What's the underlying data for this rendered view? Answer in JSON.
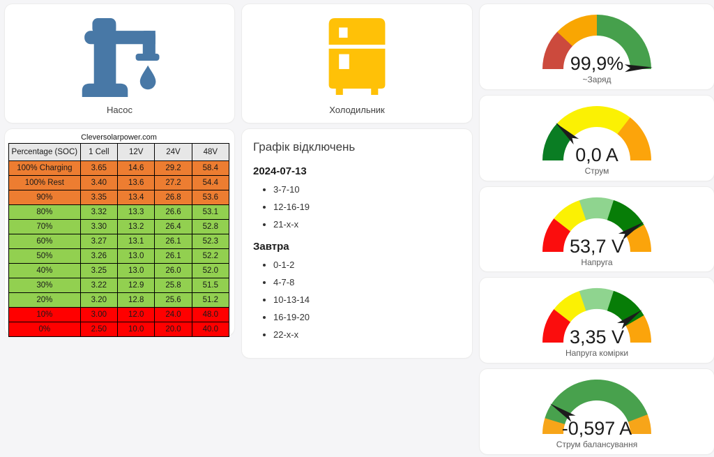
{
  "theme": {
    "background": "#f5f5f7",
    "card_background": "#ffffff",
    "needle_color": "#1c1c1c"
  },
  "pump": {
    "label": "Насос",
    "icon": "water-pump-icon",
    "icon_color": "#4878A6"
  },
  "fridge": {
    "label": "Холодильник",
    "icon": "fridge-icon",
    "icon_color": "#FFC107"
  },
  "soc_table": {
    "title": "Cleversolarpower.com",
    "headers": [
      "Percentage (SOC)",
      "1 Cell",
      "12V",
      "24V",
      "48V"
    ],
    "colors": {
      "header": "#E7E7E7",
      "orange": "#ED7D31",
      "green": "#92D050",
      "red": "#FF0000"
    },
    "rows": [
      {
        "label": "100% Charging",
        "values": [
          "3.65",
          "14.6",
          "29.2",
          "58.4"
        ],
        "color": "orange"
      },
      {
        "label": "100% Rest",
        "values": [
          "3.40",
          "13.6",
          "27.2",
          "54.4"
        ],
        "color": "orange"
      },
      {
        "label": "90%",
        "values": [
          "3.35",
          "13.4",
          "26.8",
          "53.6"
        ],
        "color": "orange"
      },
      {
        "label": "80%",
        "values": [
          "3.32",
          "13.3",
          "26.6",
          "53.1"
        ],
        "color": "green"
      },
      {
        "label": "70%",
        "values": [
          "3.30",
          "13.2",
          "26.4",
          "52.8"
        ],
        "color": "green"
      },
      {
        "label": "60%",
        "values": [
          "3.27",
          "13.1",
          "26.1",
          "52.3"
        ],
        "color": "green"
      },
      {
        "label": "50%",
        "values": [
          "3.26",
          "13.0",
          "26.1",
          "52.2"
        ],
        "color": "green"
      },
      {
        "label": "40%",
        "values": [
          "3.25",
          "13.0",
          "26.0",
          "52.0"
        ],
        "color": "green"
      },
      {
        "label": "30%",
        "values": [
          "3.22",
          "12.9",
          "25.8",
          "51.5"
        ],
        "color": "green"
      },
      {
        "label": "20%",
        "values": [
          "3.20",
          "12.8",
          "25.6",
          "51.2"
        ],
        "color": "green"
      },
      {
        "label": "10%",
        "values": [
          "3.00",
          "12.0",
          "24.0",
          "48.0"
        ],
        "color": "red"
      },
      {
        "label": "0%",
        "values": [
          "2.50",
          "10.0",
          "20.0",
          "40.0"
        ],
        "color": "red"
      }
    ]
  },
  "schedule": {
    "title": "Графік відключень",
    "sections": [
      {
        "heading": "2024-07-13",
        "items": [
          "3-7-10",
          "12-16-19",
          "21-x-x"
        ]
      },
      {
        "heading": "Завтра",
        "items": [
          "0-1-2",
          "4-7-8",
          "10-13-14",
          "16-19-20",
          "22-x-x"
        ]
      }
    ]
  },
  "gauges": [
    {
      "id": "gauge-charge",
      "value": "99,9%",
      "label": "~Заряд",
      "needle": 0.99,
      "segments": [
        {
          "from": 0,
          "to": 0.24,
          "color": "#CC4A3D"
        },
        {
          "from": 0.24,
          "to": 0.5,
          "color": "#F9A602"
        },
        {
          "from": 0.5,
          "to": 1,
          "color": "#46A04C"
        }
      ]
    },
    {
      "id": "gauge-current",
      "value": "0,0 A",
      "label": "Струм",
      "needle": 0.235,
      "segments": [
        {
          "from": 0,
          "to": 0.24,
          "color": "#0A7D23"
        },
        {
          "from": 0.24,
          "to": 0.71,
          "color": "#FBF103"
        },
        {
          "from": 0.71,
          "to": 1,
          "color": "#FCA40B"
        }
      ]
    },
    {
      "id": "gauge-voltage",
      "value": "53,7 V",
      "label": "Напруга",
      "needle": 0.82,
      "segments": [
        {
          "from": 0,
          "to": 0.21,
          "color": "#FB0D0D"
        },
        {
          "from": 0.21,
          "to": 0.395,
          "color": "#FBF103"
        },
        {
          "from": 0.395,
          "to": 0.6,
          "color": "#8FD48F"
        },
        {
          "from": 0.6,
          "to": 0.833,
          "color": "#077D07"
        },
        {
          "from": 0.833,
          "to": 1,
          "color": "#FBA40B"
        }
      ]
    },
    {
      "id": "gauge-cell-voltage",
      "value": "3,35 V",
      "label": "Напруга комірки",
      "needle": 0.8,
      "segments": [
        {
          "from": 0,
          "to": 0.21,
          "color": "#FB0D0D"
        },
        {
          "from": 0.21,
          "to": 0.395,
          "color": "#FBF103"
        },
        {
          "from": 0.395,
          "to": 0.6,
          "color": "#8FD48F"
        },
        {
          "from": 0.6,
          "to": 0.833,
          "color": "#077D07"
        },
        {
          "from": 0.833,
          "to": 1,
          "color": "#FBA40B"
        }
      ]
    },
    {
      "id": "gauge-balance-current",
      "value": "-0,597 A",
      "label": "Струм балансування",
      "needle": 0.183,
      "segments": [
        {
          "from": 0,
          "to": 0.094,
          "color": "#F7A519"
        },
        {
          "from": 0.094,
          "to": 0.883,
          "color": "#48A14D"
        },
        {
          "from": 0.883,
          "to": 1,
          "color": "#F7A519"
        }
      ]
    }
  ]
}
